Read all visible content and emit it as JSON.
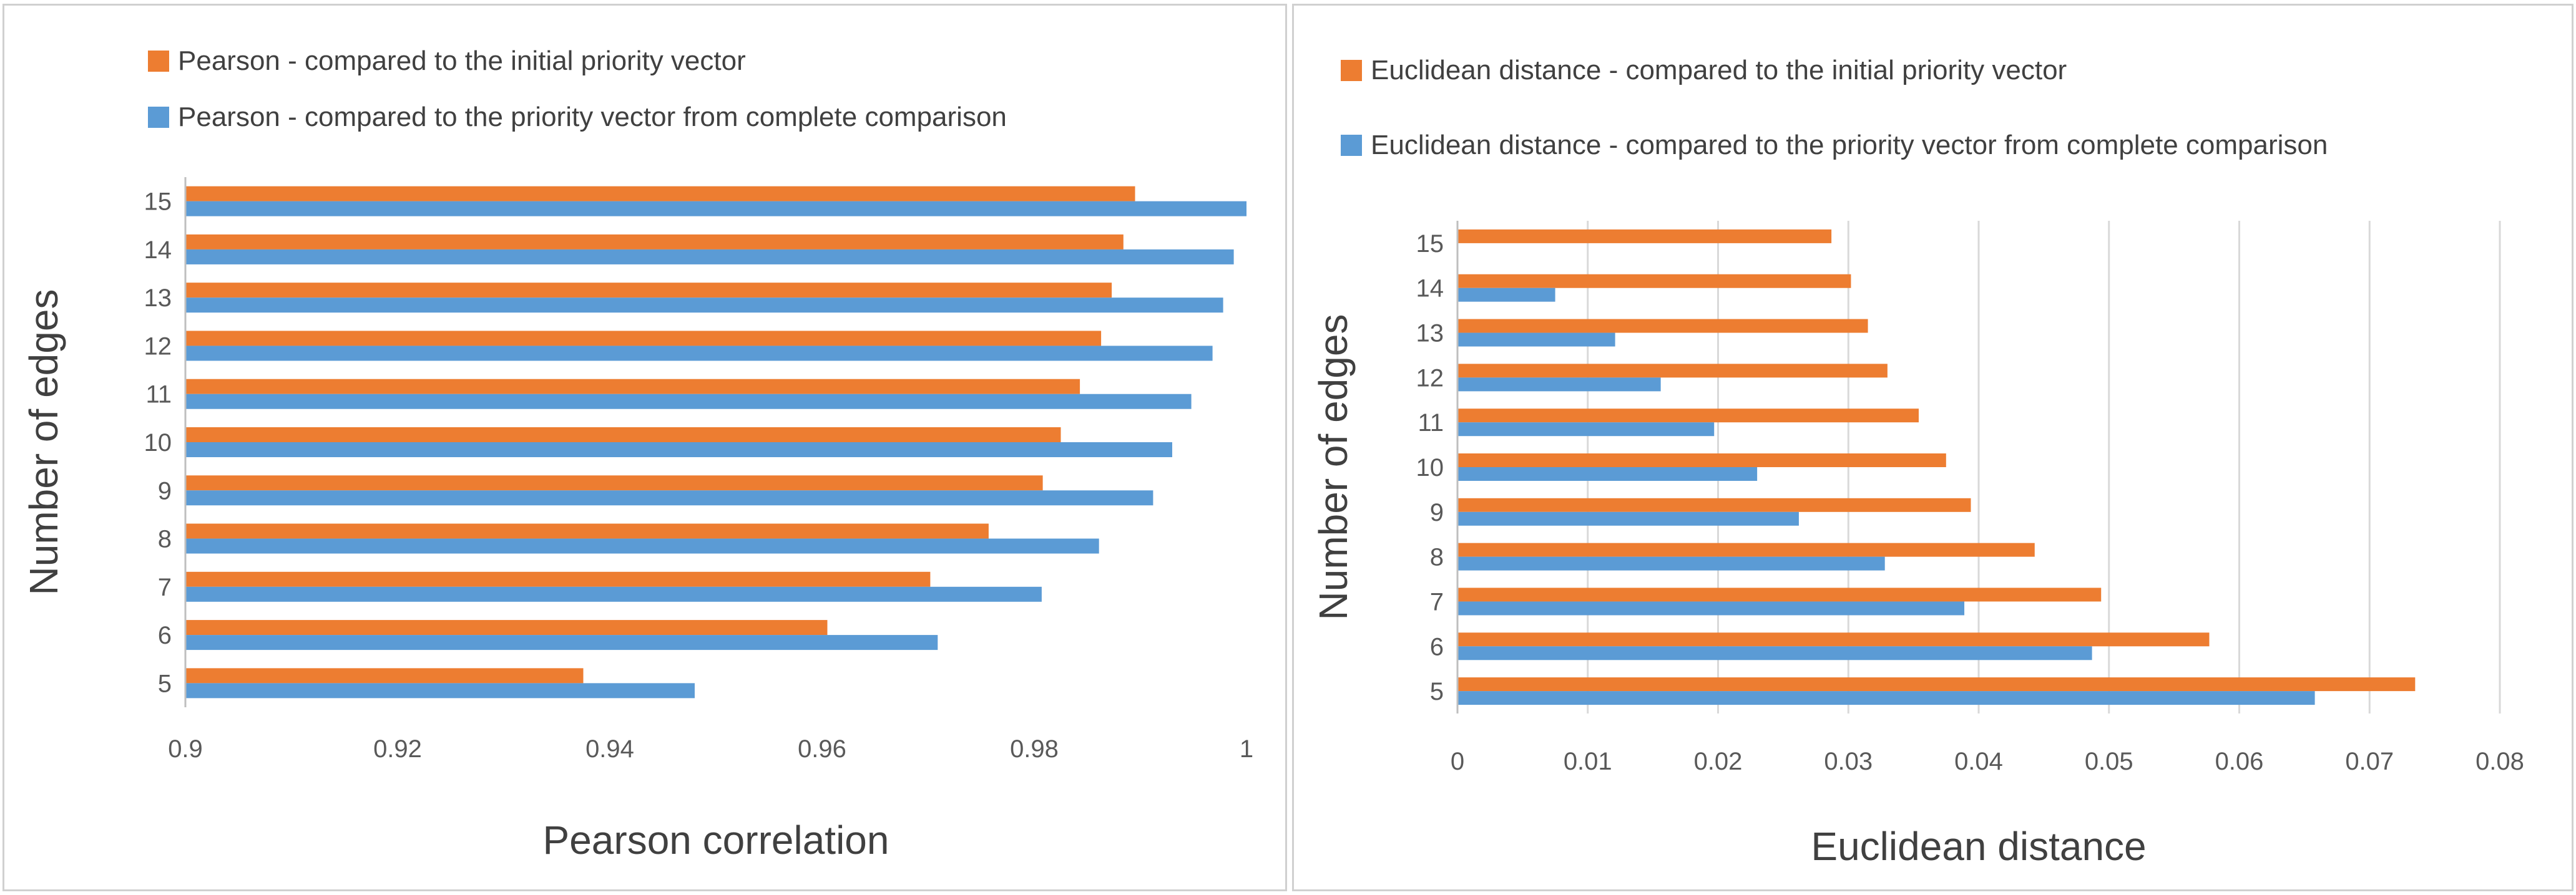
{
  "chart_data": [
    {
      "type": "bar",
      "orientation": "horizontal",
      "title": "",
      "categories": [
        "5",
        "6",
        "7",
        "8",
        "9",
        "10",
        "11",
        "12",
        "13",
        "14",
        "15"
      ],
      "series": [
        {
          "name": "Pearson - compared to the initial priority vector",
          "color": "#ed7d31",
          "values": [
            0.9375,
            0.9605,
            0.9702,
            0.9757,
            0.9808,
            0.9825,
            0.9843,
            0.9863,
            0.9873,
            0.9884,
            0.9895
          ]
        },
        {
          "name": "Pearson - compared to the priority vector from complete comparison",
          "color": "#5b9bd5",
          "values": [
            0.948,
            0.9709,
            0.9807,
            0.9861,
            0.9912,
            0.993,
            0.9948,
            0.9968,
            0.9978,
            0.9988,
            1.0
          ]
        }
      ],
      "xlabel": "Pearson correlation",
      "ylabel": "Number of edges",
      "xlim": [
        0.9,
        1.0
      ],
      "xticks": [
        "0.9",
        "0.92",
        "0.94",
        "0.96",
        "0.98",
        "1"
      ],
      "grid": false,
      "legend": "top"
    },
    {
      "type": "bar",
      "orientation": "horizontal",
      "title": "",
      "categories": [
        "5",
        "6",
        "7",
        "8",
        "9",
        "10",
        "11",
        "12",
        "13",
        "14",
        "15"
      ],
      "series": [
        {
          "name": "Euclidean distance - compared to the initial priority vector",
          "color": "#ed7d31",
          "values": [
            0.0735,
            0.0577,
            0.0494,
            0.0443,
            0.0394,
            0.0375,
            0.0354,
            0.033,
            0.0315,
            0.0302,
            0.0287
          ]
        },
        {
          "name": "Euclidean distance - compared to the priority vector from complete comparison",
          "color": "#5b9bd5",
          "values": [
            0.0658,
            0.0487,
            0.0389,
            0.0328,
            0.0262,
            0.023,
            0.0197,
            0.0156,
            0.0121,
            0.0075,
            0.0
          ]
        }
      ],
      "xlabel": "Euclidean distance",
      "ylabel": "Number of edges",
      "xlim": [
        0,
        0.08
      ],
      "xticks": [
        "0",
        "0.01",
        "0.02",
        "0.03",
        "0.04",
        "0.05",
        "0.06",
        "0.07",
        "0.08"
      ],
      "grid": true,
      "legend": "top"
    }
  ]
}
